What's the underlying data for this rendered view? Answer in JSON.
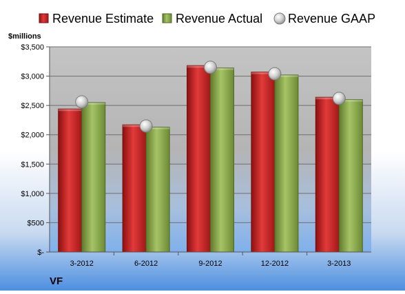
{
  "chart_data": {
    "type": "bar",
    "title": "",
    "ylabel": "$millions",
    "xlabel": "",
    "footer_label": "VF",
    "categories": [
      "3-2012",
      "6-2012",
      "9-2012",
      "12-2012",
      "3-2013"
    ],
    "y_ticks": [
      0,
      500,
      1000,
      1500,
      2000,
      2500,
      3000,
      3500
    ],
    "y_tick_labels": [
      "$-",
      "$500",
      "$1,000",
      "$1,500",
      "$2,000",
      "$2,500",
      "$3,000",
      "$3,500"
    ],
    "ylim": [
      0,
      3500
    ],
    "grid": true,
    "legend_position": "top",
    "series": [
      {
        "name": "Revenue Estimate",
        "kind": "bar",
        "color": "#d42a2a",
        "values": [
          2440,
          2170,
          3180,
          3070,
          2640
        ]
      },
      {
        "name": "Revenue Actual",
        "kind": "bar",
        "color": "#8fad52",
        "values": [
          2550,
          2130,
          3140,
          3020,
          2600
        ]
      },
      {
        "name": "Revenue GAAP",
        "kind": "marker",
        "color": "#c8c8c8",
        "values": [
          2560,
          2150,
          3150,
          3040,
          2620
        ]
      }
    ]
  }
}
